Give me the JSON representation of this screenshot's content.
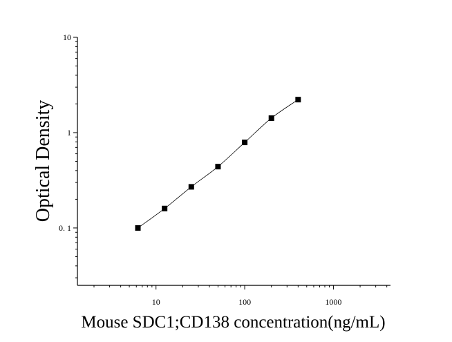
{
  "chart_data": {
    "type": "scatter",
    "title": "",
    "xlabel": "Mouse SDC1;CD138 concentration(ng/mL)",
    "ylabel": "Optical Density",
    "x_scale": "log",
    "y_scale": "log",
    "xlim": [
      1.3,
      4400
    ],
    "ylim": [
      0.025,
      10
    ],
    "x_ticks": [
      10,
      100,
      1000
    ],
    "x_tick_labels": [
      "10",
      "100",
      "1000"
    ],
    "y_ticks": [
      0.1,
      1,
      10
    ],
    "y_tick_labels": [
      "0. 1",
      "1",
      "10"
    ],
    "grid": false,
    "legend": "none",
    "series": [
      {
        "x": [
          6.25,
          12.5,
          25,
          50,
          100,
          200,
          400
        ],
        "y": [
          0.1,
          0.16,
          0.27,
          0.44,
          0.79,
          1.42,
          2.22
        ],
        "marker": "square",
        "fitted_curve": true
      }
    ],
    "colors": {
      "marker": "#000000",
      "curve": "#000000",
      "axis": "#000000"
    }
  }
}
